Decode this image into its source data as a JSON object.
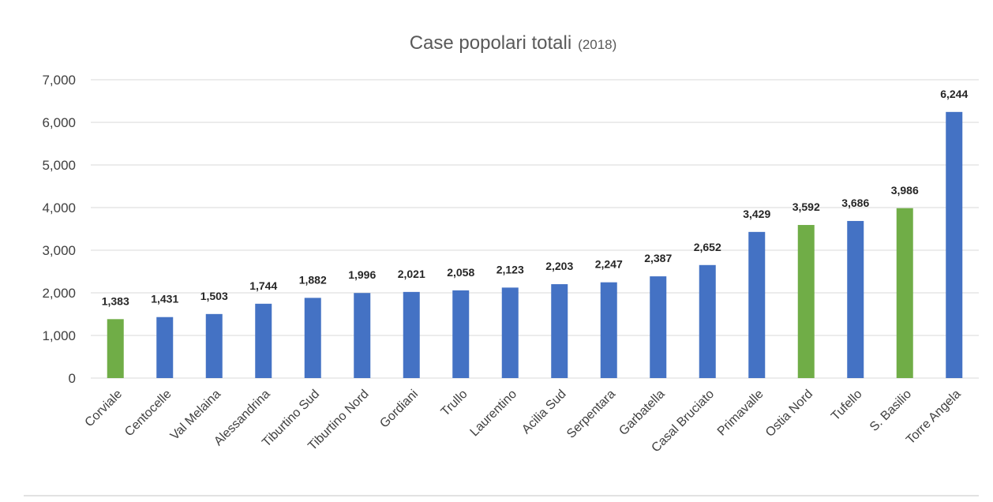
{
  "chart_data": {
    "type": "bar",
    "title": "Case popolari totali",
    "subtitle": "(2018)",
    "categories": [
      "Corviale",
      "Centocelle",
      "Val Melaina",
      "Alessandrina",
      "Tiburtino Sud",
      "Tiburtino Nord",
      "Gordiani",
      "Trullo",
      "Laurentino",
      "Acilia Sud",
      "Serpentara",
      "Garbatella",
      "Casal Bruciato",
      "Primavalle",
      "Ostia Nord",
      "Tufello",
      "S. Basilio",
      "Torre Angela"
    ],
    "values": [
      1383,
      1431,
      1503,
      1744,
      1882,
      1996,
      2021,
      2058,
      2123,
      2203,
      2247,
      2387,
      2652,
      3429,
      3592,
      3686,
      3986,
      6244
    ],
    "value_labels": [
      "1,383",
      "1,431",
      "1,503",
      "1,744",
      "1,882",
      "1,996",
      "2,021",
      "2,058",
      "2,123",
      "2,203",
      "2,247",
      "2,387",
      "2,652",
      "3,429",
      "3,592",
      "3,686",
      "3,986",
      "6,244"
    ],
    "bar_colors": [
      "#70ad47",
      "#4472c4",
      "#4472c4",
      "#4472c4",
      "#4472c4",
      "#4472c4",
      "#4472c4",
      "#4472c4",
      "#4472c4",
      "#4472c4",
      "#4472c4",
      "#4472c4",
      "#4472c4",
      "#4472c4",
      "#70ad47",
      "#4472c4",
      "#70ad47",
      "#4472c4"
    ],
    "xlabel": "",
    "ylabel": "",
    "ylim": [
      0,
      7000
    ],
    "yticks": [
      0,
      1000,
      2000,
      3000,
      4000,
      5000,
      6000,
      7000
    ],
    "ytick_labels": [
      "0",
      "1,000",
      "2,000",
      "3,000",
      "4,000",
      "5,000",
      "6,000",
      "7,000"
    ],
    "grid": true,
    "legend": "none"
  }
}
